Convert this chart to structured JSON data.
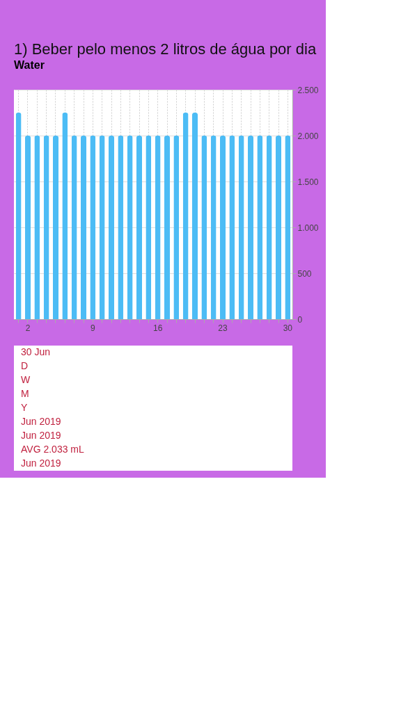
{
  "chart_data": {
    "type": "bar",
    "title": "1) Beber pelo menos 2 litros de água por dia",
    "subtitle": "Water",
    "categories": [
      null,
      "2",
      null,
      null,
      null,
      null,
      null,
      null,
      "9",
      null,
      null,
      null,
      null,
      null,
      null,
      "16",
      null,
      null,
      null,
      null,
      null,
      null,
      "23",
      null,
      null,
      null,
      null,
      null,
      null,
      "30"
    ],
    "values": [
      2250,
      2000,
      2000,
      2000,
      2000,
      2250,
      2000,
      2000,
      2000,
      2000,
      2000,
      2000,
      2000,
      2000,
      2000,
      2000,
      2000,
      2000,
      2250,
      2250,
      2000,
      2000,
      2000,
      2000,
      2000,
      2000,
      2000,
      2000,
      2000,
      2000
    ],
    "color": "#4cbcf5",
    "ylim": [
      0,
      2500
    ],
    "yticks": [
      0,
      500,
      {
        "value": 1000,
        "label": "1.000"
      },
      {
        "value": 1500,
        "label": "1.500"
      },
      {
        "value": 2000,
        "label": "2.000"
      },
      {
        "value": 2500,
        "label": "2.500"
      }
    ],
    "grid": true,
    "annotations": [
      "30 Jun",
      "D",
      "W",
      "M",
      "Y",
      "Jun 2019",
      "Jun 2019",
      "AVG 2.033 mL",
      "Jun 2019"
    ]
  }
}
